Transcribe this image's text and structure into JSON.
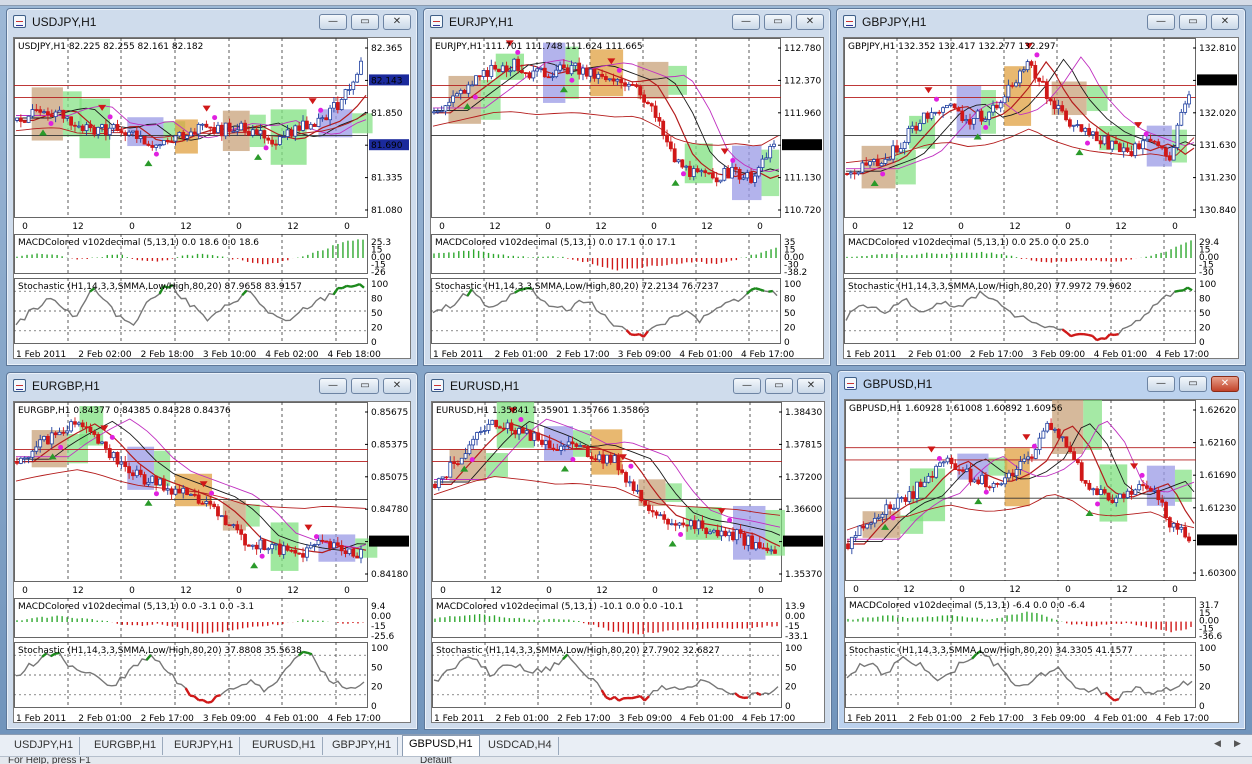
{
  "windows": [
    {
      "id": "usdjpy",
      "title": "USDJPY,H1",
      "active": false,
      "header": "USDJPY,H1  82.225 82.255 82.161 82.182",
      "price_ticks": [
        "82.365",
        "82.143",
        "81.850",
        "81.690",
        "81.335",
        "81.080"
      ],
      "price_marked": [
        "82.143",
        "81.690"
      ],
      "current_price": "82.182",
      "time_ticks_main": [
        "0",
        "12",
        "0",
        "12",
        "0",
        "12",
        "0"
      ],
      "macd_label": "MACDColored v102decimal (5,13,1) 0.0 18.6 0.0 18.6",
      "macd_ticks": [
        "25.3",
        "15",
        "0.00",
        "-15",
        "-26"
      ],
      "stoch_label": "Stochastic (H1,14,3,3,SMMA,Low/High,80,20) 87.9658 83.9157",
      "stoch_ticks": [
        "100",
        "80",
        "50",
        "20",
        "0"
      ],
      "time_ticks_bottom": [
        "1 Feb 2011",
        "2 Feb 02:00",
        "2 Feb 18:00",
        "3 Feb 10:00",
        "4 Feb 02:00",
        "4 Feb 18:00"
      ],
      "trend": [
        0.55,
        0.6,
        0.62,
        0.5,
        0.48,
        0.52,
        0.42,
        0.4,
        0.46,
        0.5,
        0.48,
        0.52,
        0.45,
        0.42,
        0.5,
        0.55,
        0.68,
        0.92
      ],
      "stoch": [
        0.3,
        0.55,
        0.7,
        0.4,
        0.85,
        0.5,
        0.3,
        0.7,
        0.9,
        0.6,
        0.35,
        0.6,
        0.8,
        0.5,
        0.3,
        0.55,
        0.7,
        0.9,
        0.85
      ],
      "macd": [
        0.1,
        0.2,
        0.15,
        -0.1,
        0.05,
        0.2,
        -0.15,
        -0.2,
        0.1,
        0.2,
        0.05,
        -0.1,
        -0.3,
        -0.2,
        0.1,
        0.4,
        0.8,
        0.95
      ]
    },
    {
      "id": "eurjpy",
      "title": "EURJPY,H1",
      "active": false,
      "header": "EURJPY,H1  111.701 111.748 111.624 111.665",
      "price_ticks": [
        "112.780",
        "112.370",
        "111.960",
        "111.665",
        "111.130",
        "110.720"
      ],
      "price_marked": [
        "111.665"
      ],
      "current_price": "111.665",
      "time_ticks_main": [
        "0",
        "12",
        "0",
        "12",
        "0",
        "12",
        "0"
      ],
      "macd_label": "MACDColored v102decimal (5,13,1) 0.0 17.1 0.0 17.1",
      "macd_ticks": [
        "35",
        "15",
        "0.00",
        "-30",
        "-38.2"
      ],
      "stoch_label": "Stochastic (H1,14,3,3,SMMA,Low/High,80,20) 72.2134 76.7237",
      "stoch_ticks": [
        "100",
        "80",
        "50",
        "20",
        "0"
      ],
      "time_ticks_bottom": [
        "1 Feb 2011",
        "2 Feb 01:00",
        "2 Feb 17:00",
        "3 Feb 09:00",
        "4 Feb 01:00",
        "4 Feb 17:00"
      ],
      "trend": [
        0.6,
        0.7,
        0.8,
        0.9,
        0.92,
        0.85,
        0.88,
        0.9,
        0.85,
        0.8,
        0.82,
        0.6,
        0.3,
        0.2,
        0.18,
        0.22,
        0.15,
        0.4
      ],
      "stoch": [
        0.45,
        0.6,
        0.8,
        0.5,
        0.7,
        0.85,
        0.6,
        0.5,
        0.7,
        0.4,
        0.2,
        0.15,
        0.3,
        0.5,
        0.35,
        0.55,
        0.7,
        0.85,
        0.75
      ],
      "macd": [
        0.2,
        0.3,
        0.4,
        0.2,
        0.1,
        0.05,
        0.1,
        -0.1,
        -0.3,
        -0.6,
        -0.5,
        -0.4,
        -0.3,
        -0.2,
        -0.3,
        -0.1,
        0.2,
        0.5
      ]
    },
    {
      "id": "gbpjpy",
      "title": "GBPJPY,H1",
      "active": false,
      "header": "GBPJPY,H1  132.352 132.417 132.277 132.297",
      "price_ticks": [
        "132.810",
        "132.297",
        "132.020",
        "131.630",
        "131.230",
        "130.840"
      ],
      "price_marked": [
        "132.297"
      ],
      "current_price": "132.297",
      "time_ticks_main": [
        "0",
        "12",
        "0",
        "12",
        "0",
        "12",
        "0"
      ],
      "macd_label": "MACDColored v102decimal (5,13,1) 0.0 25.0 0.0 25.0",
      "macd_ticks": [
        "29.4",
        "15",
        "0.00",
        "-15",
        "-30"
      ],
      "stoch_label": "Stochastic (H1,14,3,3,SMMA,Low/High,80,20) 77.9972 79.9602",
      "stoch_ticks": [
        "100",
        "80",
        "50",
        "20",
        "0"
      ],
      "time_ticks_bottom": [
        "1 Feb 2011",
        "2 Feb 01:00",
        "2 Feb 17:00",
        "3 Feb 09:00",
        "4 Feb 01:00",
        "4 Feb 17:00"
      ],
      "trend": [
        0.2,
        0.25,
        0.3,
        0.45,
        0.6,
        0.65,
        0.55,
        0.6,
        0.75,
        0.95,
        0.7,
        0.55,
        0.45,
        0.4,
        0.35,
        0.4,
        0.3,
        0.75
      ],
      "stoch": [
        0.4,
        0.6,
        0.45,
        0.7,
        0.5,
        0.65,
        0.55,
        0.8,
        0.6,
        0.4,
        0.3,
        0.2,
        0.15,
        0.1,
        0.15,
        0.3,
        0.55,
        0.8,
        0.85
      ],
      "macd": [
        0.05,
        0.1,
        0.2,
        0.15,
        0.25,
        0.2,
        0.3,
        0.25,
        0.15,
        -0.1,
        -0.2,
        -0.15,
        -0.1,
        -0.2,
        -0.1,
        0.1,
        0.4,
        0.9
      ]
    },
    {
      "id": "eurgbp",
      "title": "EURGBP,H1",
      "active": false,
      "header": "EURGBP,H1  0.84377 0.84385 0.84328 0.84376",
      "price_ticks": [
        "0.85675",
        "0.85375",
        "0.85075",
        "0.84780",
        "0.84376",
        "0.84180"
      ],
      "price_marked": [
        "0.84376"
      ],
      "current_price": "0.84376",
      "time_ticks_main": [
        "0",
        "12",
        "0",
        "12",
        "0",
        "12",
        "0"
      ],
      "macd_label": "MACDColored v102decimal (5,13,1) 0.0 -3.1 0.0 -3.1",
      "macd_ticks": [
        "9.4",
        "0.00",
        "-15",
        "-25.6"
      ],
      "stoch_label": "Stochastic (H1,14,3,3,SMMA,Low/High,80,20) 37.8808 35.5638",
      "stoch_ticks": [
        "100",
        "50",
        "20",
        "0"
      ],
      "time_ticks_bottom": [
        "1 Feb 2011",
        "2 Feb 01:00",
        "2 Feb 17:00",
        "3 Feb 09:00",
        "4 Feb 01:00",
        "4 Feb 17:00"
      ],
      "trend": [
        0.7,
        0.8,
        0.88,
        0.95,
        0.85,
        0.7,
        0.6,
        0.55,
        0.5,
        0.45,
        0.35,
        0.2,
        0.15,
        0.12,
        0.1,
        0.15,
        0.12,
        0.1
      ],
      "stoch": [
        0.5,
        0.7,
        0.85,
        0.6,
        0.5,
        0.3,
        0.6,
        0.8,
        0.5,
        0.2,
        0.1,
        0.3,
        0.4,
        0.25,
        0.6,
        0.9,
        0.5,
        0.3,
        0.35
      ],
      "macd": [
        0.1,
        0.2,
        0.3,
        0.2,
        0.1,
        -0.1,
        -0.2,
        -0.1,
        -0.3,
        -0.6,
        -0.5,
        -0.3,
        -0.2,
        -0.1,
        0.1,
        0.05,
        -0.1,
        -0.05
      ]
    },
    {
      "id": "eurusd",
      "title": "EURUSD,H1",
      "active": false,
      "header": "EURUSD,H1  1.35841 1.35901 1.35766 1.35863",
      "price_ticks": [
        "1.38430",
        "1.37815",
        "1.37200",
        "1.36600",
        "1.35863",
        "1.35370"
      ],
      "price_marked": [
        "1.35863"
      ],
      "current_price": "1.35863",
      "time_ticks_main": [
        "0",
        "12",
        "0",
        "12",
        "0",
        "12",
        "0"
      ],
      "macd_label": "MACDColored v102decimal (5,13,1) -10.1 0.0 0.0 -10.1",
      "macd_ticks": [
        "13.9",
        "0.00",
        "-15",
        "-33.1"
      ],
      "stoch_label": "Stochastic (H1,14,3,3,SMMA,Low/High,80,20) 27.7902 32.6827",
      "stoch_ticks": [
        "100",
        "50",
        "20",
        "0"
      ],
      "time_ticks_bottom": [
        "1 Feb 2011",
        "2 Feb 01:00",
        "2 Feb 17:00",
        "3 Feb 09:00",
        "4 Feb 01:00",
        "4 Feb 17:00"
      ],
      "trend": [
        0.55,
        0.7,
        0.85,
        0.95,
        0.9,
        0.85,
        0.78,
        0.8,
        0.75,
        0.7,
        0.5,
        0.35,
        0.3,
        0.28,
        0.25,
        0.22,
        0.15,
        0.1
      ],
      "stoch": [
        0.4,
        0.6,
        0.8,
        0.5,
        0.7,
        0.55,
        0.6,
        0.8,
        0.5,
        0.2,
        0.1,
        0.15,
        0.3,
        0.25,
        0.4,
        0.3,
        0.15,
        0.2,
        0.3
      ],
      "macd": [
        0.2,
        0.3,
        0.4,
        0.3,
        0.2,
        0.1,
        0.15,
        0.05,
        -0.2,
        -0.5,
        -0.6,
        -0.5,
        -0.4,
        -0.35,
        -0.3,
        -0.35,
        -0.25,
        -0.2
      ]
    },
    {
      "id": "gbpusd",
      "title": "GBPUSD,H1",
      "active": true,
      "header": "GBPUSD,H1  1.60928 1.61008 1.60892 1.60956",
      "price_ticks": [
        "1.62620",
        "1.62160",
        "1.61690",
        "1.61230",
        "1.60956",
        "1.60300"
      ],
      "price_marked": [
        "1.60956"
      ],
      "current_price": "1.60956",
      "time_ticks_main": [
        "0",
        "12",
        "0",
        "12",
        "0",
        "12",
        "0"
      ],
      "macd_label": "MACDColored v102decimal (5,13,1) -6.4 0.0 0.0 -6.4",
      "macd_ticks": [
        "31.7",
        "15",
        "0.00",
        "-15",
        "-36.6"
      ],
      "stoch_label": "Stochastic (H1,14,3,3,SMMA,Low/High,80,20) 34.3305 41.1577",
      "stoch_ticks": [
        "100",
        "50",
        "20",
        "0"
      ],
      "time_ticks_bottom": [
        "1 Feb 2011",
        "2 Feb 01:00",
        "2 Feb 17:00",
        "3 Feb 09:00",
        "4 Feb 01:00",
        "4 Feb 17:00"
      ],
      "trend": [
        0.15,
        0.3,
        0.4,
        0.45,
        0.6,
        0.7,
        0.6,
        0.55,
        0.6,
        0.7,
        0.95,
        0.8,
        0.5,
        0.45,
        0.5,
        0.55,
        0.3,
        0.2
      ],
      "stoch": [
        0.5,
        0.7,
        0.5,
        0.8,
        0.6,
        0.4,
        0.7,
        0.85,
        0.6,
        0.3,
        0.5,
        0.6,
        0.25,
        0.3,
        0.15,
        0.3,
        0.2,
        0.3,
        0.4
      ],
      "macd": [
        0.1,
        0.2,
        0.3,
        0.15,
        0.25,
        0.3,
        0.2,
        0.1,
        0.3,
        0.5,
        0.2,
        -0.1,
        -0.2,
        -0.15,
        -0.1,
        -0.3,
        -0.5,
        -0.3
      ]
    }
  ],
  "tabs": [
    "USDJPY,H1",
    "EURGBP,H1",
    "EURJPY,H1",
    "EURUSD,H1",
    "GBPJPY,H1",
    "GBPUSD,H1",
    "USDCAD,H4"
  ],
  "active_tab": "GBPUSD,H1",
  "window_buttons": {
    "minimize": "—",
    "maximize": "▭",
    "close": "✕"
  },
  "colors": {
    "bull": "#1f3f9f",
    "bear": "#d01818",
    "up_macd": "#2fa82f",
    "down_macd": "#d01818",
    "stoch_line": "#777777",
    "box_orange": "#e0a040",
    "box_tan": "#c8a27a",
    "box_green": "#7fe07f",
    "box_lilac": "#9a9ae6"
  },
  "statusbar": {
    "left": "For Help, press F1",
    "mid": "Default"
  }
}
